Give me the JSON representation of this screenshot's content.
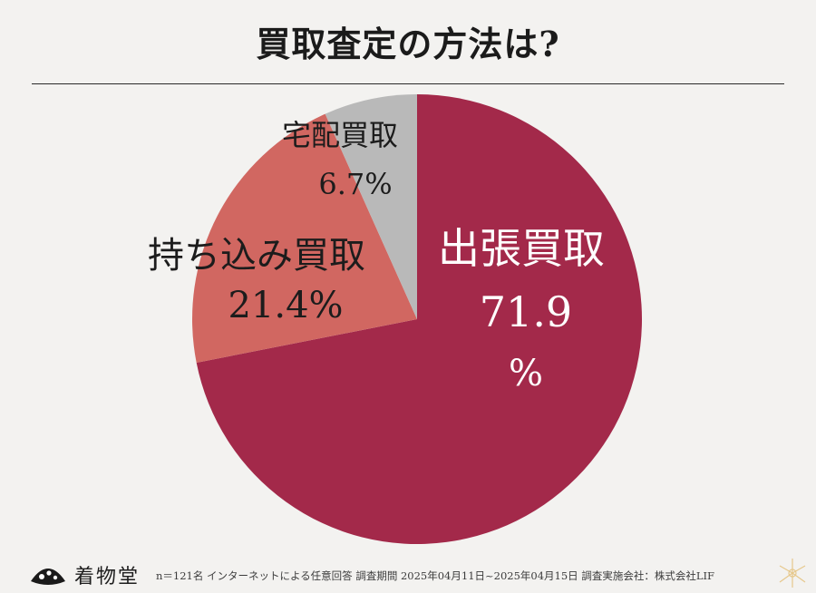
{
  "page": {
    "title": "買取査定の方法は?",
    "brand": "着物堂",
    "footnote": "n＝121名 インターネットによる任意回答 調査期間 2025年04月11日~2025年04月15日 調査実施会社：株式会社LIF"
  },
  "chart_data": {
    "type": "pie",
    "title": "買取査定の方法は?",
    "start": "12 o'clock, clockwise",
    "slices": [
      {
        "label": "出張買取",
        "value": 71.9,
        "value_text": "71.9",
        "unit_text": "%",
        "color": "#a3294a",
        "text_color": "#ffffff"
      },
      {
        "label": "持ち込み買取",
        "value": 21.4,
        "value_text": "21.4%",
        "color": "#d16761",
        "text_color": "#1c1c1c"
      },
      {
        "label": "宅配買取",
        "value": 6.7,
        "value_text": "6.7%",
        "color": "#b9b9b9",
        "text_color": "#1c1c1c"
      }
    ]
  }
}
